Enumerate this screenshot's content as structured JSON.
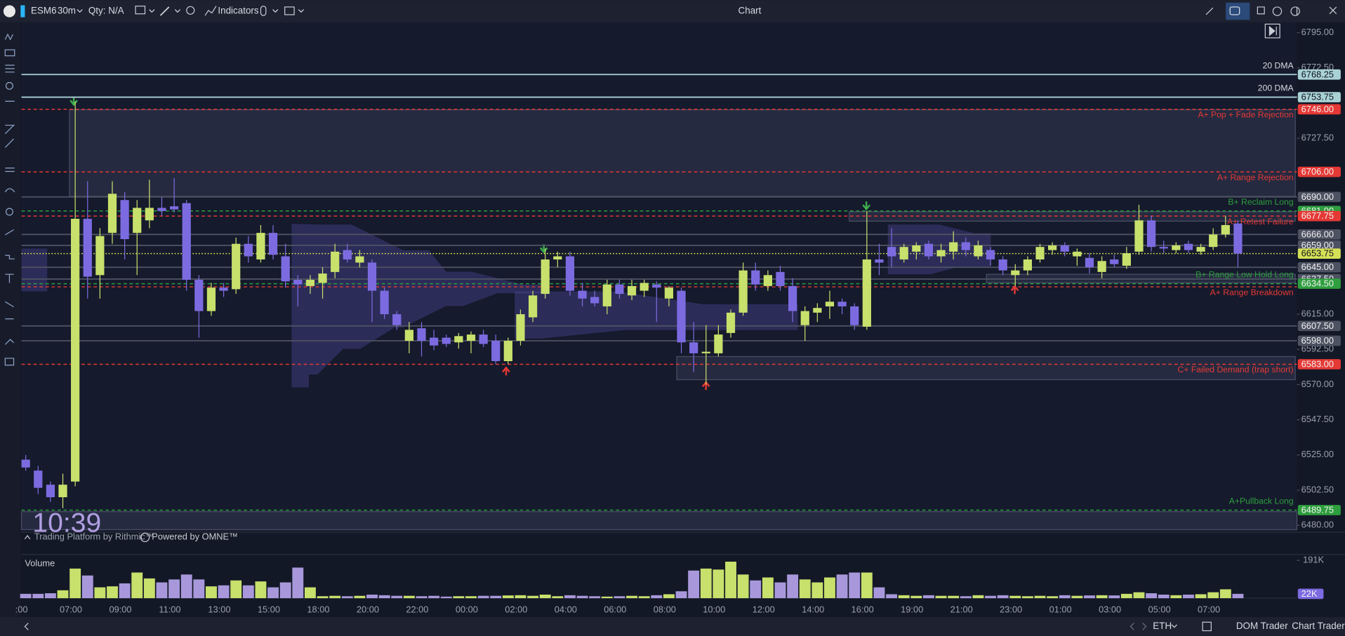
{
  "toolbar": {
    "symbol": "ESM6",
    "interval": "30m",
    "quantity": "Qty: N/A",
    "indicators": "Indicators",
    "title": "Chart"
  },
  "overlay": {
    "clock": "10:39",
    "rithmic": "Trading Platform by Rithmic™",
    "omne": "Powered by OMNE™"
  },
  "footer": {
    "session": "ETH",
    "dom_trader": "DOM Trader",
    "chart_trader": "Chart Trader"
  },
  "chart_data": [
    {
      "type": "candlestick",
      "up_color": "#c8e06c",
      "down_color": "#7c6be0",
      "categories": [
        ":00",
        null,
        null,
        null,
        "07:00",
        null,
        null,
        null,
        "09:00",
        null,
        null,
        null,
        "11:00",
        null,
        null,
        null,
        "13:00",
        null,
        null,
        null,
        "15:00",
        null,
        null,
        null,
        "18:00",
        null,
        null,
        null,
        "20:00",
        null,
        null,
        null,
        "22:00",
        null,
        null,
        null,
        "00:00",
        null,
        null,
        null,
        "02:00",
        null,
        null,
        null,
        "04:00",
        null,
        null,
        null,
        "06:00",
        null,
        null,
        null,
        "08:00",
        null,
        null,
        null,
        "10:00",
        null,
        null,
        null,
        "12:00",
        null,
        null,
        null,
        "14:00",
        null,
        null,
        null,
        "16:00",
        null,
        null,
        null,
        "19:00",
        null,
        null,
        null,
        "21:00",
        null,
        null,
        null,
        "23:00",
        null,
        null,
        null,
        "01:00",
        null,
        null,
        null,
        "03:00",
        null,
        null,
        null,
        "05:00",
        null,
        null,
        null,
        "07:00",
        null,
        null
      ],
      "open": [
        6522,
        6515,
        6506,
        6498,
        6508,
        6676,
        6640,
        6667,
        6688,
        6667,
        6675,
        6683,
        6684,
        6686,
        6637,
        6617,
        6632,
        6631,
        6660,
        6650,
        6667,
        6652,
        6637,
        6633,
        6635,
        6642,
        6656,
        6648,
        6648,
        6630,
        6615,
        6598,
        6606,
        6600,
        6600,
        6597,
        6598,
        6602,
        6598,
        6585,
        6598,
        6613,
        6628,
        6650,
        6652,
        6630,
        6626,
        6620,
        6634,
        6627,
        6630,
        6634,
        6625,
        6630,
        6597,
        6590,
        6590,
        6603,
        6616,
        6643,
        6633,
        6642,
        6633,
        6608,
        6616,
        6620,
        6623,
        6620,
        6607,
        6650,
        6658,
        6650,
        6655,
        6660,
        6652,
        6655,
        6661,
        6652,
        6656,
        6650,
        6640,
        6643,
        6650,
        6656,
        6659,
        6652,
        6651,
        6642,
        6650,
        6646,
        6655,
        6675,
        6658,
        6656,
        6660,
        6655,
        6658,
        6666,
        6673
      ],
      "high": [
        6525,
        6518,
        6508,
        6513,
        6751,
        6700,
        6670,
        6700,
        6693,
        6688,
        6701,
        6690,
        6702,
        6688,
        6640,
        6635,
        6635,
        6664,
        6665,
        6672,
        6672,
        6660,
        6640,
        6640,
        6645,
        6660,
        6660,
        6656,
        6650,
        6632,
        6617,
        6610,
        6610,
        6605,
        6602,
        6603,
        6604,
        6605,
        6602,
        6600,
        6618,
        6630,
        6657,
        6655,
        6655,
        6635,
        6630,
        6637,
        6637,
        6637,
        6637,
        6636,
        6633,
        6632,
        6610,
        6608,
        6608,
        6618,
        6648,
        6648,
        6643,
        6646,
        6638,
        6620,
        6622,
        6630,
        6625,
        6622,
        6681,
        6660,
        6670,
        6660,
        6661,
        6662,
        6660,
        6668,
        6664,
        6662,
        6658,
        6652,
        6647,
        6652,
        6660,
        6661,
        6661,
        6657,
        6654,
        6652,
        6653,
        6658,
        6685,
        6678,
        6662,
        6661,
        6662,
        6660,
        6670,
        6678,
        6675
      ],
      "low": [
        6515,
        6500,
        6495,
        6491,
        6505,
        6625,
        6625,
        6660,
        6650,
        6640,
        6670,
        6678,
        6680,
        6630,
        6600,
        6614,
        6626,
        6628,
        6648,
        6648,
        6650,
        6632,
        6620,
        6628,
        6625,
        6638,
        6648,
        6645,
        6610,
        6612,
        6605,
        6590,
        6588,
        6592,
        6594,
        6593,
        6590,
        6594,
        6583,
        6583,
        6595,
        6610,
        6625,
        6645,
        6627,
        6620,
        6620,
        6615,
        6625,
        6624,
        6626,
        6610,
        6620,
        6590,
        6578,
        6570,
        6588,
        6600,
        6614,
        6630,
        6630,
        6630,
        6610,
        6598,
        6610,
        6612,
        6615,
        6605,
        6605,
        6640,
        6645,
        6648,
        6650,
        6650,
        6648,
        6650,
        6652,
        6650,
        6646,
        6640,
        6633,
        6640,
        6648,
        6653,
        6652,
        6646,
        6641,
        6638,
        6645,
        6644,
        6653,
        6655,
        6654,
        6654,
        6654,
        6653,
        6656,
        6664,
        6645
      ],
      "close": [
        6517,
        6504,
        6498,
        6506,
        6676,
        6639,
        6665,
        6692,
        6663,
        6683,
        6683,
        6681,
        6682,
        6637,
        6617,
        6632,
        6630,
        6660,
        6652,
        6667,
        6653,
        6636,
        6634,
        6637,
        6641,
        6655,
        6650,
        6652,
        6630,
        6615,
        6608,
        6605,
        6598,
        6595,
        6596,
        6601,
        6602,
        6596,
        6585,
        6598,
        6615,
        6627,
        6650,
        6652,
        6630,
        6625,
        6622,
        6634,
        6628,
        6633,
        6635,
        6632,
        6632,
        6597,
        6590,
        6591,
        6602,
        6616,
        6643,
        6634,
        6640,
        6633,
        6617,
        6617,
        6619,
        6623,
        6620,
        6608,
        6650,
        6648,
        6652,
        6658,
        6659,
        6652,
        6656,
        6661,
        6656,
        6659,
        6650,
        6643,
        6643,
        6650,
        6658,
        6659,
        6655,
        6655,
        6645,
        6649,
        6647,
        6654,
        6675,
        6658,
        6657,
        6659,
        6656,
        6658,
        6666,
        6672,
        6653.75
      ],
      "ylim": [
        6480,
        6795
      ],
      "yticks": [
        {
          "value": 6795,
          "label": "6795.00"
        },
        {
          "value": 6772.5,
          "label": "6772.50"
        },
        {
          "value": 6727.5,
          "label": "6727.50"
        },
        {
          "value": 6615,
          "label": "6615.00"
        },
        {
          "value": 6592.5,
          "label": "6592.50"
        },
        {
          "value": 6570,
          "label": "6570.00"
        },
        {
          "value": 6547.5,
          "label": "6547.50"
        },
        {
          "value": 6525,
          "label": "6525.00"
        },
        {
          "value": 6502.5,
          "label": "6502.50"
        },
        {
          "value": 6480,
          "label": "6480.00"
        }
      ],
      "levels": [
        {
          "value": 6768.25,
          "label": "6768.25",
          "name": "20 DMA",
          "color": "#a9d2d6",
          "style": "solid"
        },
        {
          "value": 6753.75,
          "label": "6753.75",
          "name": "200 DMA",
          "color": "#a9d2d6",
          "style": "solid"
        },
        {
          "value": 6746,
          "label": "6746.00",
          "name": "A+  Pop + Fade Rejection",
          "color": "#e53935",
          "style": "dashed"
        },
        {
          "value": 6706,
          "label": "6706.00",
          "name": "A+ Range Rejection",
          "color": "#e53935",
          "style": "dashed"
        },
        {
          "value": 6690,
          "label": "6690.00",
          "color": "#4d5262",
          "style": "solid"
        },
        {
          "value": 6681,
          "label": "6681.00",
          "name": "B+ Reclaim Long",
          "color": "#2e9e3e",
          "style": "dashed"
        },
        {
          "value": 6677.75,
          "label": "6677.75",
          "name": "A+ Retest Failure",
          "color": "#e53935",
          "style": "dashed"
        },
        {
          "value": 6666,
          "label": "6666.00",
          "color": "#4d5262",
          "style": "solid"
        },
        {
          "value": 6659,
          "label": "6659.00",
          "color": "#4d5262",
          "style": "solid"
        },
        {
          "value": 6653.75,
          "label": "6653.75",
          "color": "#d4e157",
          "style": "dotted"
        },
        {
          "value": 6645,
          "label": "6645.00",
          "color": "#4d5262",
          "style": "solid"
        },
        {
          "value": 6637.5,
          "label": "6637.50",
          "color": "#4d5262",
          "style": "solid"
        },
        {
          "value": 6634.5,
          "label": "6634.50",
          "name": "B+ Range Low Hold Long",
          "color": "#2e9e3e",
          "style": "dashed"
        },
        {
          "value": 6632.5,
          "name": "A+   Range Breakdown",
          "color": "#e53935",
          "style": "dashed"
        },
        {
          "value": 6607.5,
          "label": "6607.50",
          "color": "#4d5262",
          "style": "solid"
        },
        {
          "value": 6598,
          "label": "6598.00",
          "color": "#4d5262",
          "style": "solid"
        },
        {
          "value": 6583,
          "label": "6583.00",
          "name": "C+ Failed Demand (trap short)",
          "color": "#e53935",
          "style": "dashed"
        },
        {
          "value": 6489.75,
          "label": "6489.75",
          "name": "A+Pullback Long",
          "color": "#2e9e3e",
          "style": "dashed"
        }
      ]
    },
    {
      "type": "bar",
      "title": "Volume",
      "values": [
        22000,
        22000,
        25000,
        40000,
        150000,
        115000,
        55000,
        60000,
        75000,
        130000,
        100000,
        80000,
        95000,
        120000,
        95000,
        60000,
        65000,
        90000,
        65000,
        85000,
        55000,
        80000,
        155000,
        55000,
        10000,
        12000,
        10000,
        12000,
        18000,
        15000,
        12000,
        12000,
        10000,
        12000,
        8000,
        10000,
        10000,
        12000,
        12000,
        14000,
        15000,
        12000,
        18000,
        10000,
        15000,
        12000,
        10000,
        8000,
        10000,
        12000,
        10000,
        15000,
        20000,
        35000,
        140000,
        150000,
        145000,
        185000,
        120000,
        90000,
        105000,
        80000,
        120000,
        95000,
        80000,
        105000,
        120000,
        130000,
        130000,
        55000,
        20000,
        15000,
        12000,
        15000,
        12000,
        12000,
        10000,
        15000,
        12000,
        15000,
        12000,
        10000,
        12000,
        10000,
        15000,
        12000,
        14000,
        15000,
        14000,
        22000,
        30000,
        25000,
        18000,
        15000,
        18000,
        20000,
        30000,
        45000,
        22000
      ],
      "value_labels": [
        null,
        null,
        null,
        null,
        null,
        null,
        null,
        null,
        null,
        null,
        null,
        null,
        null,
        null,
        null,
        null,
        null,
        null,
        null,
        null,
        null,
        null,
        null,
        null,
        null,
        null,
        null,
        null,
        null,
        null,
        null,
        null,
        null,
        null,
        null,
        null,
        null,
        null,
        null,
        null,
        null,
        null,
        null,
        null,
        null,
        null,
        null,
        null,
        null,
        null,
        null,
        null,
        null,
        null,
        null,
        null,
        null,
        null,
        null,
        null,
        null,
        null,
        null,
        null,
        null,
        null,
        null,
        null,
        null,
        null,
        null,
        null,
        null,
        null,
        null,
        null,
        null,
        null,
        null,
        null,
        null,
        null,
        null,
        null,
        null,
        null,
        null,
        null,
        null,
        null,
        null,
        null,
        null,
        null,
        null,
        null,
        null,
        null,
        "22K"
      ],
      "ylim": [
        0,
        191000
      ],
      "yticks": [
        {
          "value": 191000,
          "label": "191K"
        }
      ]
    }
  ]
}
